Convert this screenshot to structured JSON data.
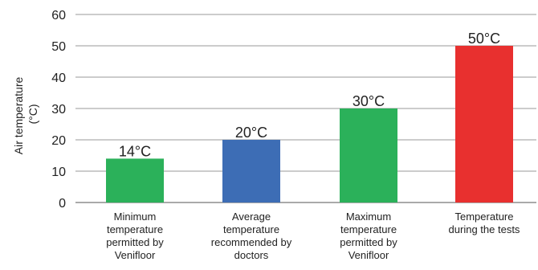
{
  "chart_data": {
    "type": "bar",
    "categories": [
      [
        "Minimum",
        "temperature",
        "permitted by",
        "Venifloor"
      ],
      [
        "Average",
        "temperature",
        "recommended by",
        "doctors"
      ],
      [
        "Maximum",
        "temperature",
        "permitted by",
        "Venifloor"
      ],
      [
        "Temperature",
        "during the tests"
      ]
    ],
    "values": [
      14,
      20,
      30,
      50
    ],
    "data_labels": [
      "14°C",
      "20°C",
      "30°C",
      "50°C"
    ],
    "bar_colors": [
      "#2bb15a",
      "#3d6db5",
      "#2bb15a",
      "#e8302f"
    ],
    "ylabel_lines": [
      "Air temperature",
      "(°C)"
    ],
    "yticks": [
      0,
      10,
      20,
      30,
      40,
      50,
      60
    ],
    "ylim": [
      0,
      60
    ],
    "grid": true
  }
}
